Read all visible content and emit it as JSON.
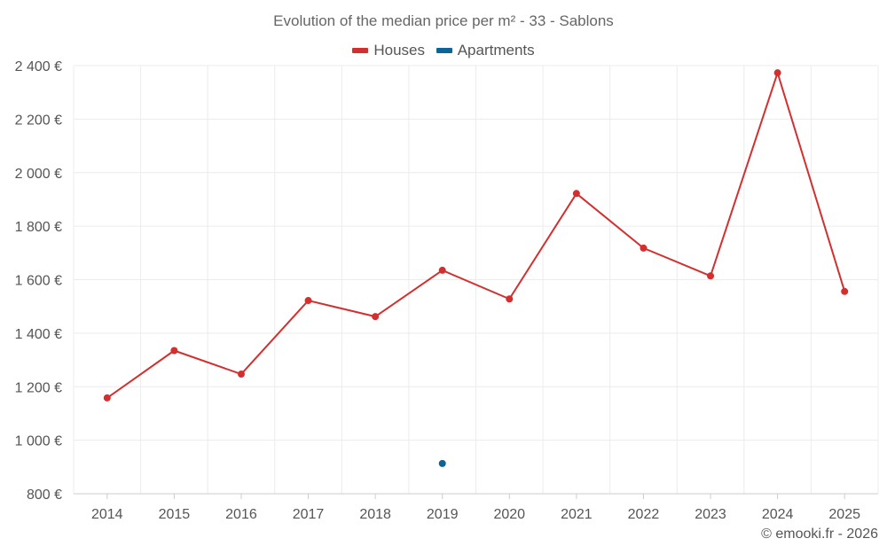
{
  "chart_data": {
    "type": "line",
    "title": "Evolution of the median price per m² - 33 - Sablons",
    "categories": [
      "2014",
      "2015",
      "2016",
      "2017",
      "2018",
      "2019",
      "2020",
      "2021",
      "2022",
      "2023",
      "2024",
      "2025"
    ],
    "ylim": [
      800,
      2400
    ],
    "yticks": [
      800,
      1000,
      1200,
      1400,
      1600,
      1800,
      2000,
      2200,
      2400
    ],
    "ytick_labels": [
      "800 €",
      "1 000 €",
      "1 200 €",
      "1 400 €",
      "1 600 €",
      "1 800 €",
      "2 000 €",
      "2 200 €",
      "2 400 €"
    ],
    "grid": true,
    "legend_position": "top-center",
    "series": [
      {
        "name": "Houses",
        "color": "#d32f2f",
        "values": [
          1158,
          1335,
          1247,
          1522,
          1462,
          1635,
          1528,
          1922,
          1718,
          1614,
          2373,
          1556
        ]
      },
      {
        "name": "Apartments",
        "color": "#0d6496",
        "values": [
          null,
          null,
          null,
          null,
          null,
          913,
          null,
          null,
          null,
          null,
          null,
          null
        ]
      }
    ]
  },
  "footer": {
    "credit": "© emooki.fr - 2026"
  }
}
